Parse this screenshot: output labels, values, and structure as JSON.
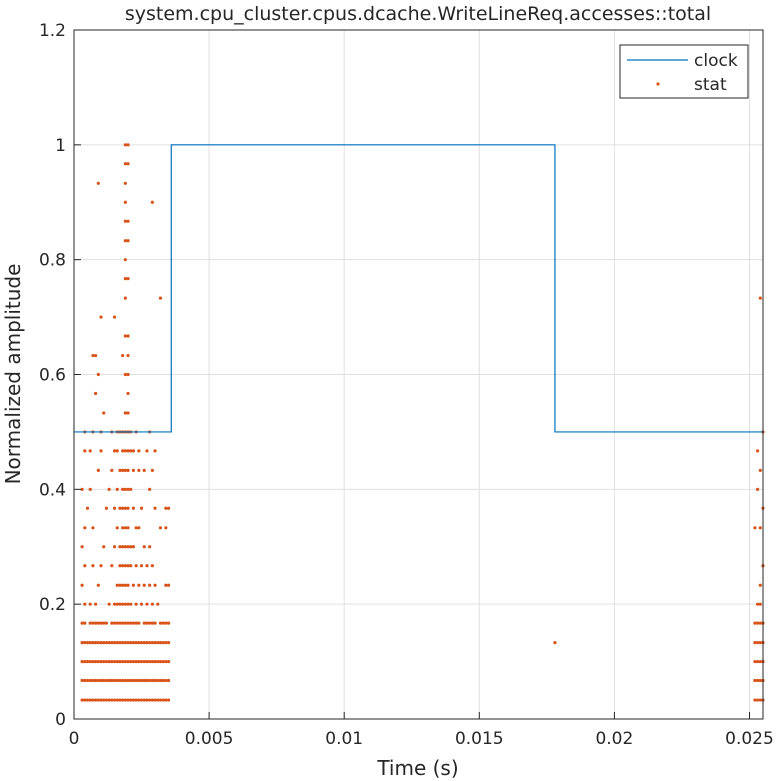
{
  "chart_data": {
    "type": "line",
    "title": "system.cpu_cluster.cpus.dcache.WriteLineReq.accesses::total",
    "xlabel": "Time (s)",
    "ylabel": "Normalized amplitude",
    "xlim": [
      0,
      0.0255
    ],
    "ylim": [
      0,
      1.2
    ],
    "xticks": [
      0,
      0.005,
      0.01,
      0.015,
      0.02,
      0.025
    ],
    "xtick_labels": [
      "0",
      "0.005",
      "0.01",
      "0.015",
      "0.02",
      "0.025"
    ],
    "yticks": [
      0,
      0.2,
      0.4,
      0.6,
      0.8,
      1,
      1.2
    ],
    "ytick_labels": [
      "0",
      "0.2",
      "0.4",
      "0.6",
      "0.8",
      "1",
      "1.2"
    ],
    "grid": true,
    "legend_position": "top-right",
    "colors": {
      "clock": "#0072BD",
      "stat": "#D95319"
    },
    "series": [
      {
        "name": "clock",
        "type": "step",
        "x": [
          0,
          0.0036,
          0.0036,
          0.0178,
          0.0178,
          0.0255
        ],
        "y": [
          0.5,
          0.5,
          1.0,
          1.0,
          0.5,
          0.5
        ]
      },
      {
        "name": "stat",
        "type": "scatter",
        "x": [
          0.0003,
          0.0003,
          0.0003,
          0.0003,
          0.0003,
          0.0003,
          0.0003,
          0.0003,
          0.0004,
          0.0004,
          0.0004,
          0.0004,
          0.0004,
          0.0004,
          0.0004,
          0.0004,
          0.0004,
          0.0004,
          0.0005,
          0.0005,
          0.0005,
          0.0005,
          0.0005,
          0.0006,
          0.0006,
          0.0006,
          0.0006,
          0.0006,
          0.0006,
          0.0006,
          0.0006,
          0.0007,
          0.0007,
          0.0007,
          0.0007,
          0.0007,
          0.0007,
          0.0007,
          0.0007,
          0.0007,
          0.0008,
          0.0008,
          0.0008,
          0.0008,
          0.0008,
          0.0008,
          0.0008,
          0.0008,
          0.0009,
          0.0009,
          0.0009,
          0.0009,
          0.0009,
          0.0009,
          0.0009,
          0.0009,
          0.0009,
          0.001,
          0.001,
          0.001,
          0.001,
          0.001,
          0.001,
          0.001,
          0.001,
          0.001,
          0.0011,
          0.0011,
          0.0011,
          0.0011,
          0.0011,
          0.0011,
          0.0011,
          0.0012,
          0.0012,
          0.0012,
          0.0012,
          0.0012,
          0.0012,
          0.0013,
          0.0013,
          0.0013,
          0.0013,
          0.0013,
          0.0013,
          0.0014,
          0.0014,
          0.0014,
          0.0014,
          0.0014,
          0.0014,
          0.0014,
          0.0014,
          0.0015,
          0.0015,
          0.0015,
          0.0015,
          0.0015,
          0.0015,
          0.0015,
          0.0015,
          0.0015,
          0.0015,
          0.0016,
          0.0016,
          0.0016,
          0.0016,
          0.0016,
          0.0016,
          0.0016,
          0.0016,
          0.0016,
          0.0016,
          0.0016,
          0.0017,
          0.0017,
          0.0017,
          0.0017,
          0.0017,
          0.0017,
          0.0017,
          0.0017,
          0.0017,
          0.0017,
          0.0017,
          0.0017,
          0.0018,
          0.0018,
          0.0018,
          0.0018,
          0.0018,
          0.0018,
          0.0018,
          0.0018,
          0.0018,
          0.0018,
          0.0018,
          0.0018,
          0.0018,
          0.0018,
          0.0018,
          0.0018,
          0.0019,
          0.0019,
          0.0019,
          0.0019,
          0.0019,
          0.0019,
          0.0019,
          0.0019,
          0.0019,
          0.0019,
          0.0019,
          0.0019,
          0.0019,
          0.0019,
          0.0019,
          0.0019,
          0.0019,
          0.0019,
          0.0019,
          0.0019,
          0.0019,
          0.0019,
          0.0019,
          0.0019,
          0.0019,
          0.0019,
          0.0019,
          0.002,
          0.002,
          0.002,
          0.002,
          0.002,
          0.002,
          0.002,
          0.002,
          0.002,
          0.002,
          0.002,
          0.002,
          0.002,
          0.002,
          0.002,
          0.002,
          0.002,
          0.002,
          0.002,
          0.002,
          0.002,
          0.002,
          0.002,
          0.002,
          0.002,
          0.0021,
          0.0021,
          0.0021,
          0.0021,
          0.0021,
          0.0021,
          0.0021,
          0.0021,
          0.0021,
          0.0021,
          0.0021,
          0.0022,
          0.0022,
          0.0022,
          0.0022,
          0.0022,
          0.0022,
          0.0022,
          0.0022,
          0.0022,
          0.0022,
          0.0023,
          0.0023,
          0.0023,
          0.0023,
          0.0023,
          0.0023,
          0.0023,
          0.0023,
          0.0023,
          0.0024,
          0.0024,
          0.0024,
          0.0024,
          0.0024,
          0.0024,
          0.0024,
          0.0024,
          0.0024,
          0.0025,
          0.0025,
          0.0025,
          0.0025,
          0.0025,
          0.0025,
          0.0025,
          0.0026,
          0.0026,
          0.0026,
          0.0026,
          0.0026,
          0.0026,
          0.0026,
          0.0026,
          0.0027,
          0.0027,
          0.0027,
          0.0027,
          0.0027,
          0.0027,
          0.0027,
          0.0027,
          0.0028,
          0.0028,
          0.0028,
          0.0028,
          0.0028,
          0.0028,
          0.0028,
          0.0028,
          0.0028,
          0.0029,
          0.0029,
          0.0029,
          0.0029,
          0.0029,
          0.0029,
          0.0029,
          0.0029,
          0.0029,
          0.003,
          0.003,
          0.003,
          0.003,
          0.003,
          0.003,
          0.003,
          0.003,
          0.0031,
          0.0031,
          0.0031,
          0.0031,
          0.0031,
          0.0032,
          0.0032,
          0.0032,
          0.0032,
          0.0032,
          0.0032,
          0.0032,
          0.0033,
          0.0033,
          0.0033,
          0.0033,
          0.0033,
          0.0034,
          0.0034,
          0.0034,
          0.0034,
          0.0034,
          0.0034,
          0.0034,
          0.0034,
          0.0035,
          0.0035,
          0.0035,
          0.0035,
          0.0035,
          0.0035,
          0.0035,
          0.0178,
          0.0252,
          0.0252,
          0.0252,
          0.0252,
          0.0252,
          0.0252,
          0.0253,
          0.0253,
          0.0253,
          0.0253,
          0.0253,
          0.0253,
          0.0253,
          0.0253,
          0.0254,
          0.0254,
          0.0254,
          0.0254,
          0.0254,
          0.0254,
          0.0254,
          0.0254,
          0.0254,
          0.0254,
          0.0255,
          0.0255,
          0.0255,
          0.0255,
          0.0255,
          0.0255,
          0.0255,
          0.0255
        ],
        "y": [
          0.033,
          0.067,
          0.1,
          0.133,
          0.167,
          0.233,
          0.3,
          0.4,
          0.033,
          0.067,
          0.1,
          0.133,
          0.167,
          0.2,
          0.267,
          0.333,
          0.467,
          0.5,
          0.033,
          0.067,
          0.1,
          0.133,
          0.367,
          0.033,
          0.067,
          0.1,
          0.133,
          0.167,
          0.2,
          0.4,
          0.467,
          0.033,
          0.067,
          0.1,
          0.133,
          0.167,
          0.267,
          0.333,
          0.5,
          0.633,
          0.033,
          0.067,
          0.1,
          0.133,
          0.167,
          0.2,
          0.567,
          0.633,
          0.033,
          0.067,
          0.1,
          0.133,
          0.167,
          0.233,
          0.433,
          0.6,
          0.933,
          0.033,
          0.067,
          0.1,
          0.133,
          0.167,
          0.267,
          0.467,
          0.5,
          0.7,
          0.033,
          0.067,
          0.1,
          0.133,
          0.167,
          0.3,
          0.533,
          0.033,
          0.067,
          0.1,
          0.133,
          0.167,
          0.367,
          0.033,
          0.067,
          0.1,
          0.133,
          0.2,
          0.4,
          0.033,
          0.067,
          0.1,
          0.133,
          0.167,
          0.267,
          0.433,
          0.5,
          0.033,
          0.067,
          0.1,
          0.133,
          0.167,
          0.2,
          0.3,
          0.367,
          0.467,
          0.7,
          0.033,
          0.067,
          0.1,
          0.133,
          0.167,
          0.2,
          0.233,
          0.333,
          0.4,
          0.467,
          0.5,
          0.033,
          0.067,
          0.1,
          0.133,
          0.167,
          0.2,
          0.233,
          0.267,
          0.3,
          0.367,
          0.433,
          0.5,
          0.033,
          0.067,
          0.1,
          0.133,
          0.167,
          0.2,
          0.233,
          0.267,
          0.3,
          0.333,
          0.367,
          0.4,
          0.433,
          0.467,
          0.5,
          0.633,
          0.033,
          0.067,
          0.1,
          0.133,
          0.167,
          0.2,
          0.233,
          0.267,
          0.3,
          0.333,
          0.367,
          0.4,
          0.433,
          0.467,
          0.5,
          0.533,
          0.6,
          0.667,
          0.733,
          0.767,
          0.8,
          0.833,
          0.867,
          0.9,
          0.933,
          0.967,
          1.0,
          0.033,
          0.067,
          0.1,
          0.133,
          0.167,
          0.2,
          0.233,
          0.267,
          0.3,
          0.333,
          0.367,
          0.4,
          0.433,
          0.467,
          0.5,
          0.533,
          0.567,
          0.6,
          0.633,
          0.667,
          0.767,
          0.833,
          0.867,
          0.967,
          1.0,
          0.033,
          0.067,
          0.1,
          0.133,
          0.167,
          0.2,
          0.267,
          0.3,
          0.4,
          0.467,
          0.5,
          0.033,
          0.067,
          0.1,
          0.133,
          0.167,
          0.233,
          0.3,
          0.367,
          0.433,
          0.467,
          0.033,
          0.067,
          0.1,
          0.133,
          0.167,
          0.2,
          0.267,
          0.333,
          0.5,
          0.033,
          0.067,
          0.1,
          0.133,
          0.167,
          0.233,
          0.333,
          0.433,
          0.467,
          0.033,
          0.067,
          0.1,
          0.133,
          0.2,
          0.267,
          0.367,
          0.033,
          0.067,
          0.1,
          0.133,
          0.167,
          0.233,
          0.3,
          0.433,
          0.033,
          0.067,
          0.1,
          0.133,
          0.167,
          0.2,
          0.267,
          0.467,
          0.033,
          0.067,
          0.1,
          0.133,
          0.167,
          0.233,
          0.3,
          0.4,
          0.5,
          0.033,
          0.067,
          0.1,
          0.133,
          0.167,
          0.2,
          0.267,
          0.433,
          0.9,
          0.033,
          0.067,
          0.1,
          0.133,
          0.167,
          0.233,
          0.367,
          0.467,
          0.033,
          0.067,
          0.1,
          0.133,
          0.2,
          0.033,
          0.067,
          0.1,
          0.133,
          0.167,
          0.333,
          0.733,
          0.033,
          0.067,
          0.1,
          0.133,
          0.167,
          0.033,
          0.067,
          0.1,
          0.133,
          0.167,
          0.233,
          0.333,
          0.367,
          0.033,
          0.067,
          0.1,
          0.133,
          0.167,
          0.233,
          0.367,
          0.133,
          0.033,
          0.067,
          0.1,
          0.133,
          0.167,
          0.333,
          0.033,
          0.067,
          0.1,
          0.133,
          0.167,
          0.2,
          0.4,
          0.467,
          0.033,
          0.067,
          0.1,
          0.133,
          0.167,
          0.2,
          0.233,
          0.333,
          0.433,
          0.733,
          0.033,
          0.067,
          0.1,
          0.133,
          0.167,
          0.267,
          0.367,
          0.5
        ]
      }
    ]
  }
}
